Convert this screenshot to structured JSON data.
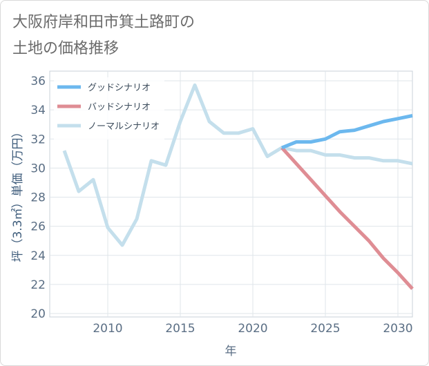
{
  "title": {
    "line1": "大阪府岸和田市箕土路町の",
    "line2": "土地の価格推移"
  },
  "chart_data": {
    "type": "line",
    "title": "大阪府岸和田市箕土路町の土地の価格推移",
    "xlabel": "年",
    "ylabel": "坪（3.3㎡）単価（万円）",
    "xlim": [
      2006,
      2031
    ],
    "ylim": [
      20,
      36
    ],
    "xticks": [
      2010,
      2015,
      2020,
      2025,
      2030
    ],
    "yticks": [
      20,
      22,
      24,
      26,
      28,
      30,
      32,
      34,
      36
    ],
    "grid": true,
    "legend_position": "top-left",
    "series": [
      {
        "name": "グッドシナリオ",
        "color": "#6cb8ee",
        "x": [
          2022,
          2023,
          2024,
          2025,
          2026,
          2027,
          2028,
          2029,
          2030,
          2031
        ],
        "values": [
          31.4,
          31.8,
          31.8,
          32.0,
          32.5,
          32.6,
          32.9,
          33.2,
          33.4,
          33.6
        ]
      },
      {
        "name": "バッドシナリオ",
        "color": "#df8d94",
        "x": [
          2022,
          2023,
          2024,
          2025,
          2026,
          2027,
          2028,
          2029,
          2030,
          2031
        ],
        "values": [
          31.4,
          30.3,
          29.2,
          28.1,
          27.0,
          26.0,
          25.0,
          23.8,
          22.8,
          21.7
        ]
      },
      {
        "name": "ノーマルシナリオ",
        "color": "#c4dfec",
        "x": [
          2007,
          2008,
          2009,
          2010,
          2011,
          2012,
          2013,
          2014,
          2015,
          2016,
          2017,
          2018,
          2019,
          2020,
          2021,
          2022,
          2023,
          2024,
          2025,
          2026,
          2027,
          2028,
          2029,
          2030,
          2031
        ],
        "values": [
          31.2,
          28.4,
          29.2,
          25.9,
          24.7,
          26.5,
          30.5,
          30.2,
          33.2,
          35.7,
          33.2,
          32.4,
          32.4,
          32.7,
          30.8,
          31.4,
          31.2,
          31.2,
          30.9,
          30.9,
          30.7,
          30.7,
          30.5,
          30.5,
          30.3
        ]
      }
    ]
  }
}
